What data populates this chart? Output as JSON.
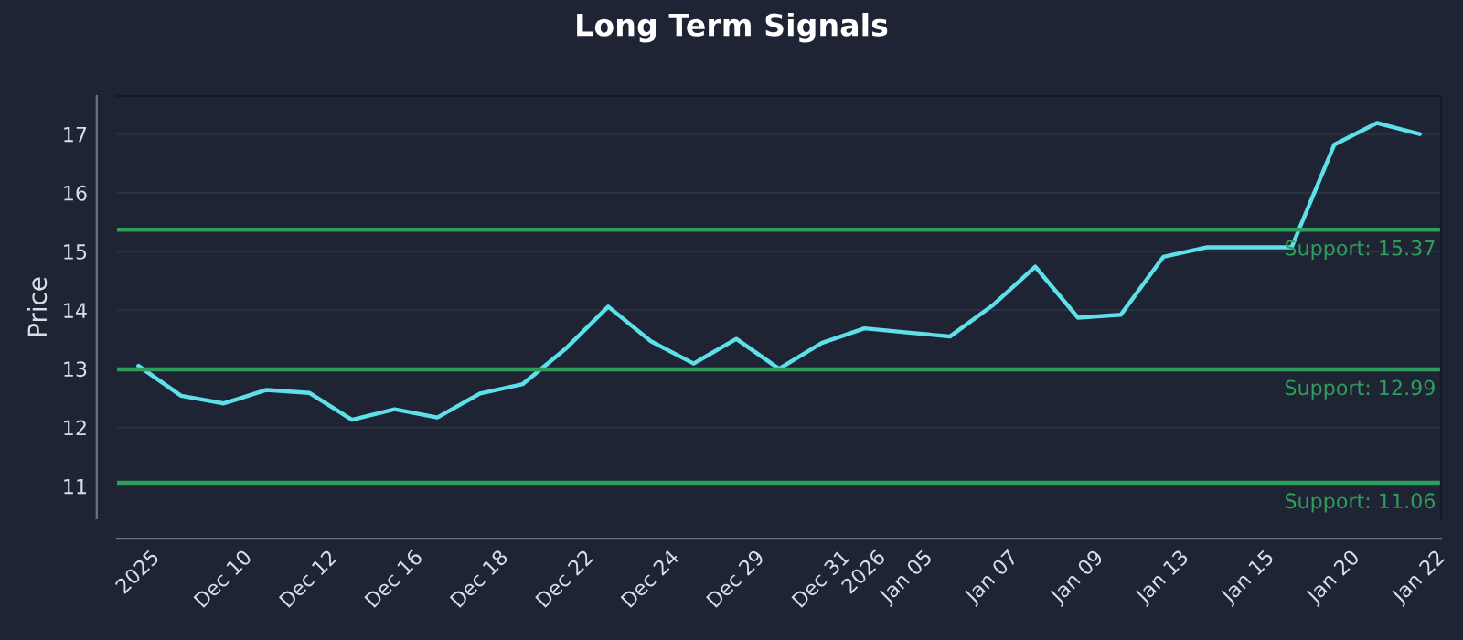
{
  "chart_data": {
    "type": "line",
    "title": "Long Term Signals",
    "ylabel": "Price",
    "categories": [
      "2025",
      null,
      "Dec 10",
      null,
      "Dec 12",
      null,
      "Dec 16",
      null,
      "Dec 18",
      null,
      "Dec 22",
      null,
      "Dec 24",
      null,
      "Dec 29",
      null,
      "Dec 31",
      "2026",
      "Jan 05",
      null,
      "Jan 07",
      null,
      "Jan 09",
      null,
      "Jan 13",
      null,
      "Jan 15",
      null,
      "Jan 20",
      null,
      "Jan 22"
    ],
    "series": [
      {
        "color": "#5ee0ea",
        "values": [
          13.05,
          12.54,
          12.41,
          12.64,
          12.59,
          12.13,
          12.31,
          12.17,
          12.58,
          12.74,
          13.34,
          14.06,
          13.47,
          13.09,
          13.51,
          13.0,
          13.44,
          13.69,
          13.62,
          13.55,
          14.08,
          14.74,
          13.87,
          13.92,
          14.91,
          15.07,
          15.07,
          15.07,
          16.82,
          17.19,
          17.0
        ]
      }
    ],
    "ylim": [
      10.45,
      17.65
    ],
    "yticks": [
      11,
      12,
      13,
      14,
      15,
      16,
      17
    ],
    "grid": "y",
    "legend": false,
    "line_style": "solid",
    "marker": "none",
    "ref_lines": [
      {
        "axis": "y",
        "value": 15.37,
        "label": "Support: 15.37",
        "color": "#2f9e5c"
      },
      {
        "axis": "y",
        "value": 12.99,
        "label": "Support: 12.99",
        "color": "#2f9e5c"
      },
      {
        "axis": "y",
        "value": 11.06,
        "label": "Support: 11.06",
        "color": "#2f9e5c"
      }
    ]
  }
}
